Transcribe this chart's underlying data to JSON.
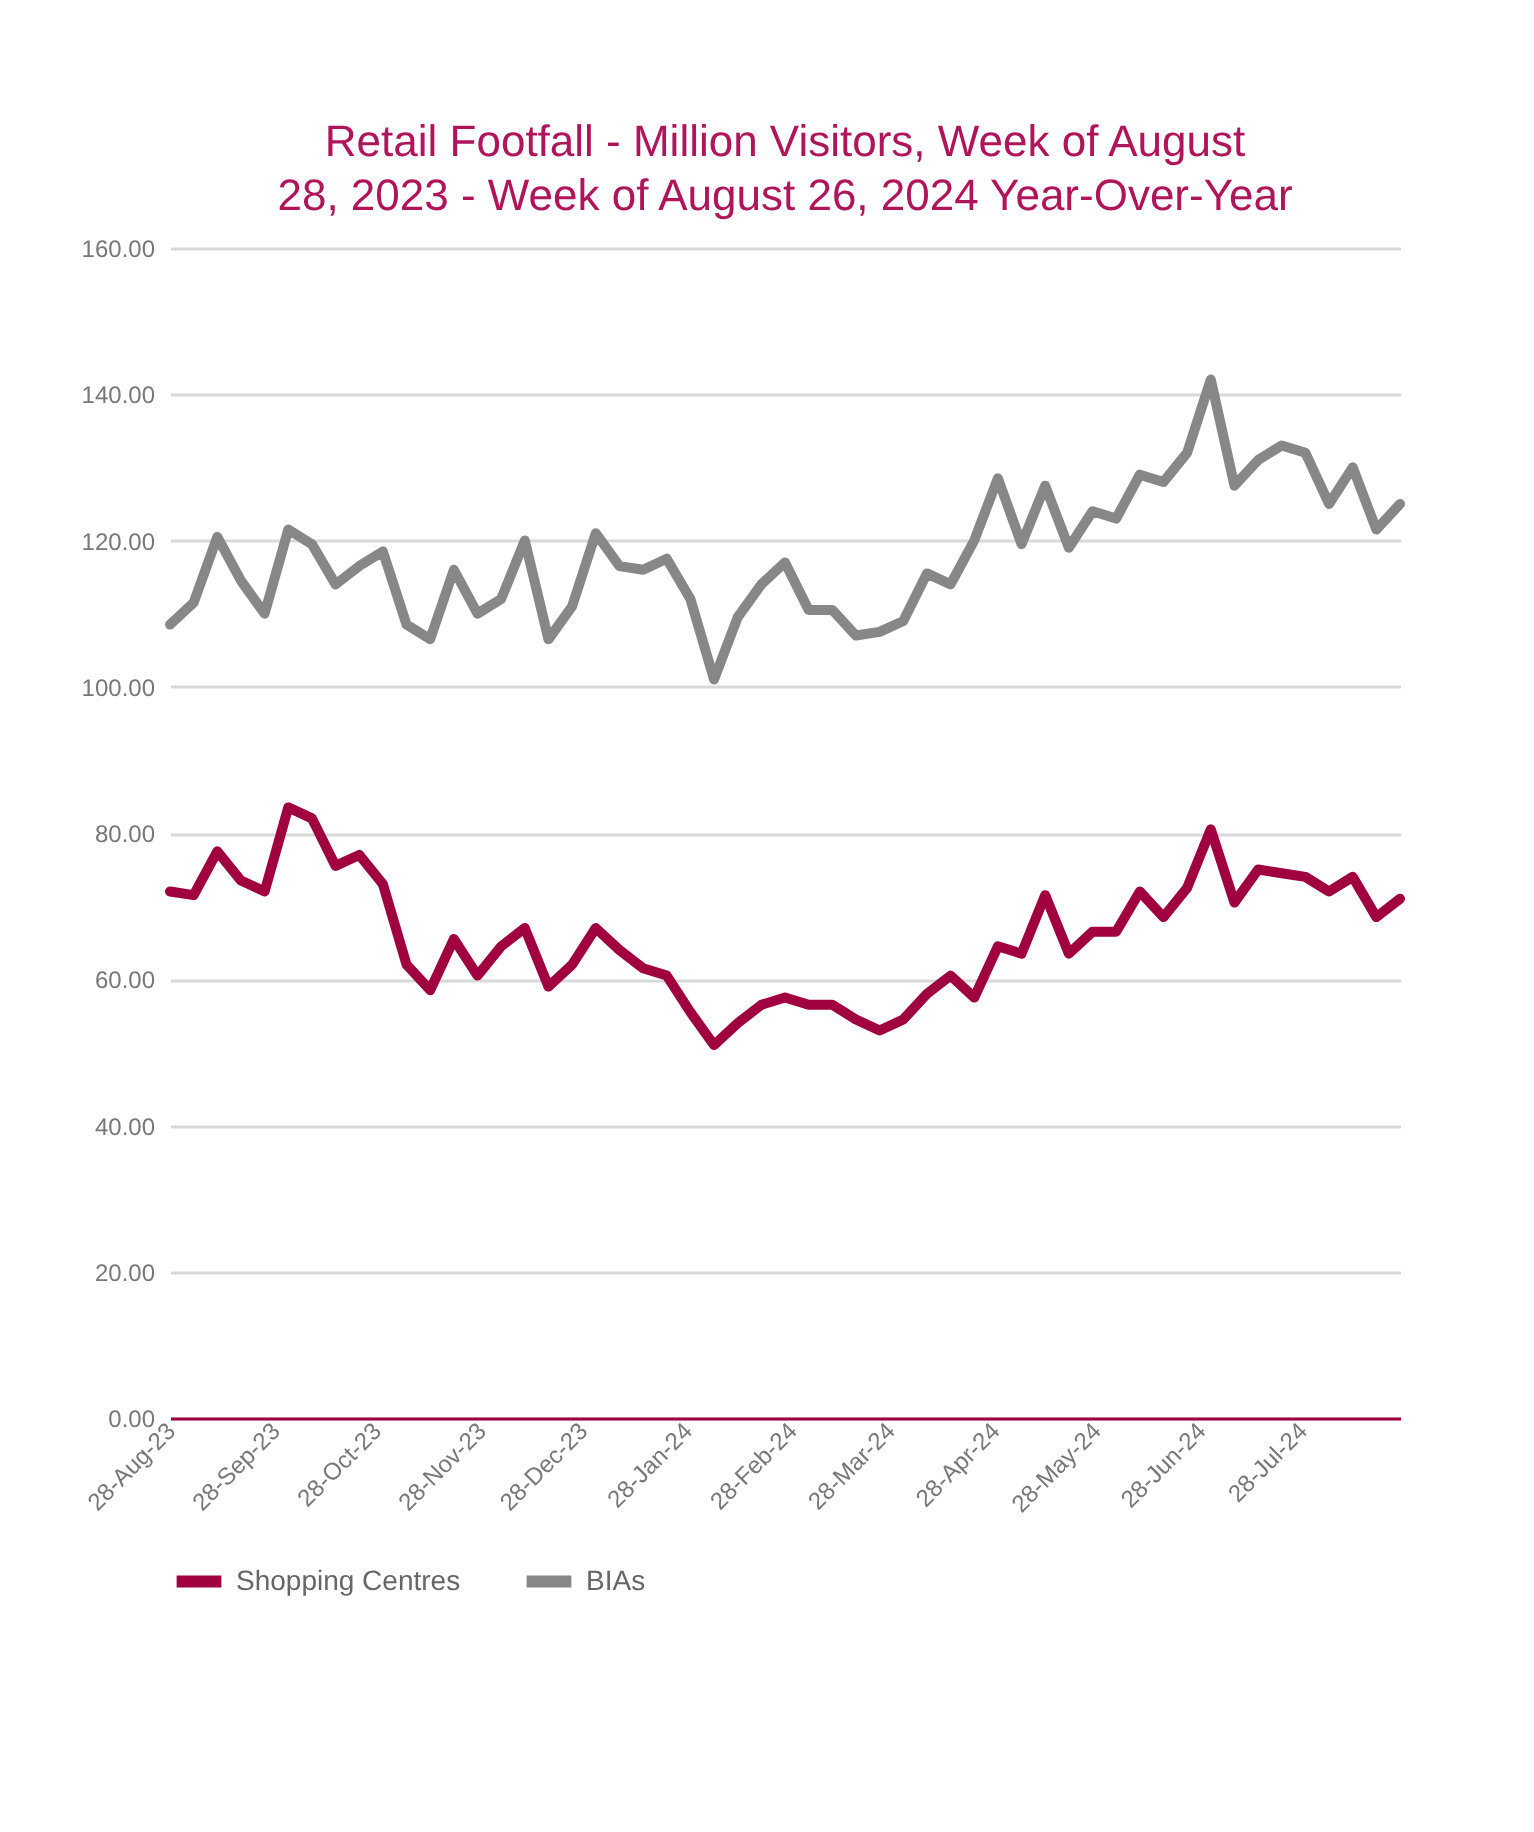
{
  "chart_data": {
    "type": "line",
    "title": "Retail Footfall - Million Visitors, Week of August 28, 2023 - Week of August 26, 2024 Year-Over-Year",
    "x": [
      "2023-08-28",
      "2023-09-04",
      "2023-09-11",
      "2023-09-18",
      "2023-09-25",
      "2023-10-02",
      "2023-10-09",
      "2023-10-16",
      "2023-10-23",
      "2023-10-30",
      "2023-11-06",
      "2023-11-13",
      "2023-11-20",
      "2023-11-27",
      "2023-12-04",
      "2023-12-11",
      "2023-12-18",
      "2023-12-25",
      "2024-01-01",
      "2024-01-08",
      "2024-01-15",
      "2024-01-22",
      "2024-01-29",
      "2024-02-05",
      "2024-02-12",
      "2024-02-19",
      "2024-02-26",
      "2024-03-04",
      "2024-03-11",
      "2024-03-18",
      "2024-03-25",
      "2024-04-01",
      "2024-04-08",
      "2024-04-15",
      "2024-04-22",
      "2024-04-29",
      "2024-05-06",
      "2024-05-13",
      "2024-05-20",
      "2024-05-27",
      "2024-06-03",
      "2024-06-10",
      "2024-06-17",
      "2024-06-24",
      "2024-07-01",
      "2024-07-08",
      "2024-07-15",
      "2024-07-22",
      "2024-07-29",
      "2024-08-05",
      "2024-08-12",
      "2024-08-19",
      "2024-08-26"
    ],
    "series": [
      {
        "name": "Shopping Centres",
        "color": "#a0003f",
        "values": [
          72,
          71.5,
          77.5,
          73.5,
          72,
          83.5,
          82,
          75.5,
          77,
          73,
          62,
          58.5,
          65.5,
          60.5,
          64.5,
          67,
          59,
          62,
          67,
          64,
          61.5,
          60.5,
          55.5,
          51,
          54,
          56.5,
          57.5,
          56.5,
          56.5,
          54.5,
          53,
          54.5,
          58,
          60.5,
          57.5,
          64.5,
          63.5,
          71.5,
          63.5,
          66.5,
          66.5,
          72,
          68.5,
          72.5,
          80.5,
          70.5,
          75,
          74.5,
          74,
          72,
          74,
          68.5,
          71
        ]
      },
      {
        "name": "BIAs",
        "color": "#878787",
        "values": [
          108.5,
          111.5,
          120.5,
          114.5,
          110,
          121.5,
          119.5,
          114,
          116.5,
          118.5,
          108.5,
          106.5,
          116,
          110,
          112,
          120,
          106.5,
          111,
          121,
          116.5,
          116,
          117.5,
          112,
          101,
          109.5,
          114,
          117,
          110.5,
          110.5,
          107,
          107.5,
          109,
          115.5,
          114,
          120,
          128.5,
          119.5,
          127.5,
          119,
          124,
          123,
          129,
          128,
          132,
          142,
          127.5,
          131,
          133,
          132,
          125,
          130,
          121.5,
          125
        ]
      }
    ],
    "xlim": [
      "2023-08-28",
      "2024-08-26"
    ],
    "xticks": [
      {
        "value": "2023-08-28",
        "label": "28-Aug-23"
      },
      {
        "value": "2023-09-28",
        "label": "28-Sep-23"
      },
      {
        "value": "2023-10-28",
        "label": "28-Oct-23"
      },
      {
        "value": "2023-11-28",
        "label": "28-Nov-23"
      },
      {
        "value": "2023-12-28",
        "label": "28-Dec-23"
      },
      {
        "value": "2024-01-28",
        "label": "28-Jan-24"
      },
      {
        "value": "2024-02-28",
        "label": "28-Feb-24"
      },
      {
        "value": "2024-03-28",
        "label": "28-Mar-24"
      },
      {
        "value": "2024-04-28",
        "label": "28-Apr-24"
      },
      {
        "value": "2024-05-28",
        "label": "28-May-24"
      },
      {
        "value": "2024-06-28",
        "label": "28-Jun-24"
      },
      {
        "value": "2024-07-28",
        "label": "28-Jul-24"
      }
    ],
    "ylim": [
      0,
      160
    ],
    "yticks": [
      {
        "value": 0,
        "label": "0.00"
      },
      {
        "value": 20,
        "label": "20.00"
      },
      {
        "value": 40,
        "label": "40.00"
      },
      {
        "value": 60,
        "label": "60.00"
      },
      {
        "value": 80,
        "label": "80.00"
      },
      {
        "value": 100,
        "label": "100.00"
      },
      {
        "value": 120,
        "label": "120.00"
      },
      {
        "value": 140,
        "label": "140.00"
      },
      {
        "value": 160,
        "label": "160.00"
      }
    ],
    "grid": "y",
    "legend": "bottom",
    "marker": "none",
    "line_style": "solid"
  }
}
